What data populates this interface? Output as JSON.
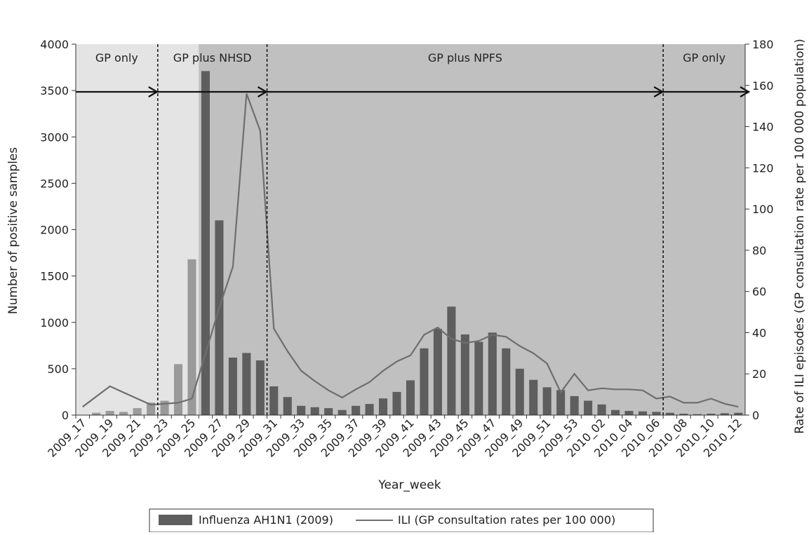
{
  "chart_data": {
    "type": "bar",
    "xlabel": "Year_week",
    "ylabel_left": "Number of positive samples",
    "ylabel_right": "Rate of ILI episodes (GP consultation rate per 100 000 population)",
    "ylim_left": [
      0,
      4000
    ],
    "ylim_right": [
      0,
      180
    ],
    "yticks_left": [
      "0",
      "500",
      "1000",
      "1500",
      "2000",
      "2500",
      "3000",
      "3500",
      "4000"
    ],
    "yticks_right": [
      "0",
      "20",
      "40",
      "60",
      "80",
      "100",
      "120",
      "140",
      "160",
      "180"
    ],
    "weeks": [
      "2009_17",
      "2009_18",
      "2009_19",
      "2009_20",
      "2009_21",
      "2009_22",
      "2009_23",
      "2009_24",
      "2009_25",
      "2009_26",
      "2009_27",
      "2009_28",
      "2009_29",
      "2009_30",
      "2009_31",
      "2009_32",
      "2009_33",
      "2009_34",
      "2009_35",
      "2009_36",
      "2009_37",
      "2009_38",
      "2009_39",
      "2009_40",
      "2009_41",
      "2009_42",
      "2009_43",
      "2009_44",
      "2009_45",
      "2009_46",
      "2009_47",
      "2009_48",
      "2009_49",
      "2009_50",
      "2009_51",
      "2009_52",
      "2009_53",
      "2010_01",
      "2010_02",
      "2010_03",
      "2010_04",
      "2010_05",
      "2010_06",
      "2010_07",
      "2010_08",
      "2010_09",
      "2010_10",
      "2010_11",
      "2010_12"
    ],
    "tick_labels": [
      "2009_17",
      "2009_19",
      "2009_21",
      "2009_23",
      "2009_25",
      "2009_27",
      "2009_29",
      "2009_31",
      "2009_33",
      "2009_35",
      "2009_37",
      "2009_39",
      "2009_41",
      "2009_43",
      "2009_45",
      "2009_47",
      "2009_49",
      "2009_51",
      "2009_53",
      "2010_02",
      "2010_04",
      "2010_06",
      "2010_08",
      "2010_10",
      "2010_12"
    ],
    "series": [
      {
        "name": "Influenza AH1N1 (2009)",
        "kind": "bar",
        "axis": "left",
        "values": [
          0,
          25,
          45,
          35,
          75,
          135,
          155,
          550,
          1680,
          3710,
          2100,
          620,
          670,
          590,
          310,
          195,
          100,
          85,
          75,
          55,
          100,
          120,
          180,
          250,
          375,
          720,
          930,
          1170,
          870,
          790,
          890,
          720,
          500,
          380,
          300,
          270,
          205,
          155,
          115,
          55,
          45,
          40,
          35,
          25,
          15,
          10,
          15,
          20,
          25
        ]
      },
      {
        "name": "ILI (GP consultation rates per 100 000)",
        "kind": "line",
        "axis": "right",
        "values": [
          4,
          9,
          14,
          11,
          8,
          5,
          5.5,
          6,
          8,
          30,
          52,
          72,
          156,
          138,
          42,
          31,
          21.5,
          16.5,
          12,
          8.5,
          12.5,
          16,
          21.5,
          26,
          29,
          39,
          42.5,
          37,
          35,
          36,
          39,
          38,
          33.5,
          30,
          25,
          11,
          20,
          12,
          13,
          12.5,
          12.5,
          12,
          8,
          9,
          6,
          6,
          8,
          5.5,
          4
        ]
      }
    ],
    "phases": [
      {
        "label": "GP only",
        "from_week": "2009_17",
        "to_week": "2009_22",
        "color": "#e4e4e4"
      },
      {
        "label": "GP plus NHSD",
        "from_week": "2009_23",
        "to_week": "2009_30",
        "color": "#e4e4e4"
      },
      {
        "label": "GP plus NPFS",
        "from_week": "2009_31",
        "to_week": "2010_06",
        "color": "#c0c0c0"
      },
      {
        "label": "GP only",
        "from_week": "2010_07",
        "to_week": "2010_12",
        "color": "#c0c0c0"
      }
    ],
    "bar_colors": {
      "main": "#5e5e5e",
      "nhsd": "#9a9a9a"
    },
    "line_color": "#6e6e6e",
    "legend_position": "bottom-center",
    "grid": false
  }
}
